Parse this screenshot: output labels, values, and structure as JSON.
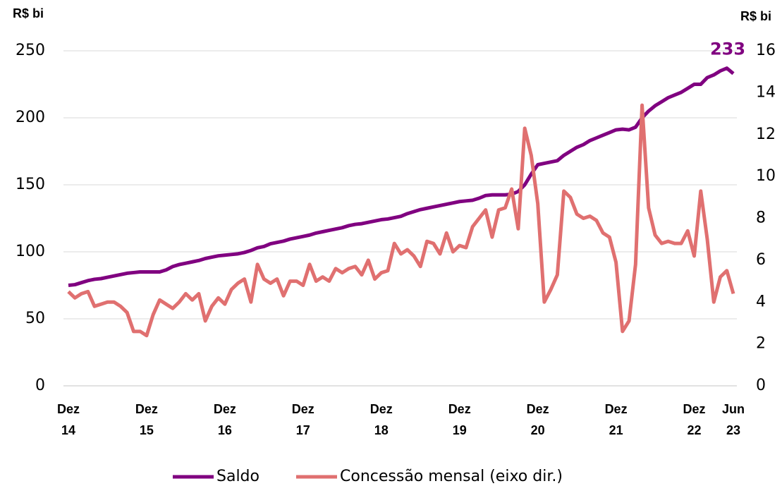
{
  "chart_data": {
    "type": "line",
    "y_label": "R$ bi",
    "y2_label": "R$ bi",
    "categories": [
      "Dez\n14",
      null,
      null,
      null,
      null,
      null,
      null,
      null,
      null,
      null,
      null,
      null,
      "Dez\n15",
      null,
      null,
      null,
      null,
      null,
      null,
      null,
      null,
      null,
      null,
      null,
      "Dez\n16",
      null,
      null,
      null,
      null,
      null,
      null,
      null,
      null,
      null,
      null,
      null,
      "Dez\n17",
      null,
      null,
      null,
      null,
      null,
      null,
      null,
      null,
      null,
      null,
      null,
      "Dez\n18",
      null,
      null,
      null,
      null,
      null,
      null,
      null,
      null,
      null,
      null,
      null,
      "Dez\n19",
      null,
      null,
      null,
      null,
      null,
      null,
      null,
      null,
      null,
      null,
      null,
      "Dez\n20",
      null,
      null,
      null,
      null,
      null,
      null,
      null,
      null,
      null,
      null,
      null,
      "Dez\n21",
      null,
      null,
      null,
      null,
      null,
      null,
      null,
      null,
      null,
      null,
      null,
      "Dez\n22",
      null,
      null,
      null,
      null,
      null,
      "Jun\n23"
    ],
    "series": [
      {
        "name": "Saldo",
        "color": "#800080",
        "axis": "y",
        "values": [
          75,
          75.5,
          77,
          78.5,
          79.5,
          80,
          81,
          82,
          83,
          84,
          84.5,
          85,
          85,
          85,
          85,
          86.5,
          89,
          90.5,
          91.5,
          92.5,
          93.5,
          95,
          96,
          97,
          97.5,
          98,
          98.5,
          99.5,
          101,
          103,
          104,
          106,
          107,
          108,
          109.5,
          110.5,
          111.5,
          112.5,
          114,
          115,
          116,
          117,
          118,
          119.5,
          120.5,
          121,
          122,
          123,
          124,
          124.5,
          125.5,
          126.5,
          128.5,
          130,
          131.5,
          132.5,
          133.5,
          134.5,
          135.5,
          136.5,
          137.5,
          138,
          138.5,
          140,
          142,
          142.5,
          142.5,
          142.5,
          143,
          145,
          150,
          158,
          165,
          166,
          167,
          168,
          172,
          175,
          178,
          180,
          183,
          185,
          187,
          189,
          191,
          191.5,
          191,
          193,
          200,
          205,
          209,
          212,
          215,
          217,
          219,
          222,
          225,
          225,
          230,
          232,
          235,
          237,
          233
        ]
      },
      {
        "name": "Concessão mensal (eixo dir.)",
        "color": "#e07070",
        "axis": "y2",
        "values": [
          4.5,
          4.2,
          4.4,
          4.5,
          3.8,
          3.9,
          4.0,
          4.0,
          3.8,
          3.5,
          2.6,
          2.6,
          2.4,
          3.4,
          4.1,
          3.9,
          3.7,
          4.0,
          4.4,
          4.1,
          4.4,
          3.1,
          3.8,
          4.2,
          3.9,
          4.6,
          4.9,
          5.1,
          4.0,
          5.8,
          5.1,
          4.9,
          5.1,
          4.3,
          5.0,
          5.0,
          4.8,
          5.8,
          5.0,
          5.2,
          5.0,
          5.6,
          5.4,
          5.6,
          5.7,
          5.3,
          6.0,
          5.1,
          5.4,
          5.5,
          6.8,
          6.3,
          6.5,
          6.2,
          5.7,
          6.9,
          6.8,
          6.3,
          7.3,
          6.4,
          6.7,
          6.6,
          7.6,
          8.0,
          8.4,
          7.1,
          8.4,
          8.5,
          9.4,
          7.5,
          12.3,
          11.0,
          8.7,
          4.0,
          4.6,
          5.3,
          9.3,
          9.0,
          8.2,
          8.0,
          8.1,
          7.9,
          7.3,
          7.1,
          5.9,
          2.6,
          3.1,
          5.8,
          13.4,
          8.5,
          7.2,
          6.8,
          6.9,
          6.8,
          6.8,
          7.4,
          6.2,
          9.3,
          7.0,
          4.0,
          5.2,
          5.5,
          4.4
        ]
      }
    ],
    "annotation": "233",
    "ylim": [
      0,
      250
    ],
    "yticks": [
      0,
      50,
      100,
      150,
      200,
      250
    ],
    "y2lim": [
      0,
      16
    ],
    "y2ticks": [
      0,
      2,
      4,
      6,
      8,
      10,
      12,
      14,
      16
    ],
    "grid": true,
    "legend": "bottom"
  }
}
